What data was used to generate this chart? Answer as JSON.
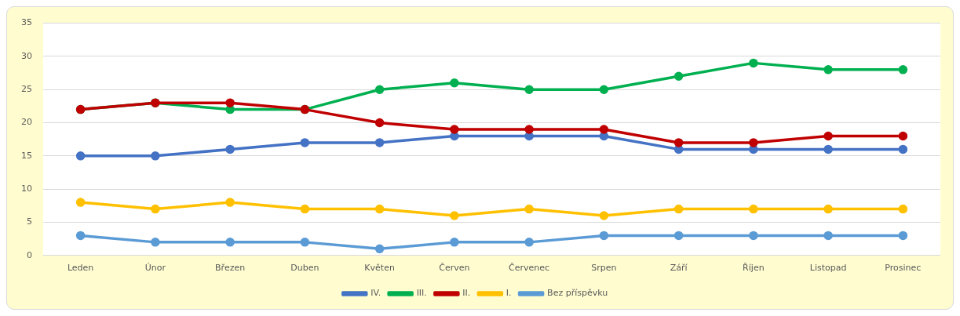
{
  "chart_data": {
    "type": "line",
    "categories": [
      "Leden",
      "Únor",
      "Březen",
      "Duben",
      "Květen",
      "Červen",
      "Červenec",
      "Srpen",
      "Září",
      "Říjen",
      "Listopad",
      "Prosinec"
    ],
    "series": [
      {
        "name": "IV.",
        "color": "#4472c4",
        "values": [
          15,
          15,
          16,
          17,
          17,
          18,
          18,
          18,
          16,
          16,
          16,
          16
        ]
      },
      {
        "name": "III.",
        "color": "#00b050",
        "values": [
          22,
          23,
          22,
          22,
          25,
          26,
          25,
          25,
          27,
          29,
          28,
          28
        ]
      },
      {
        "name": "II.",
        "color": "#c00000",
        "values": [
          22,
          23,
          23,
          22,
          20,
          19,
          19,
          19,
          17,
          17,
          18,
          18
        ]
      },
      {
        "name": "I.",
        "color": "#ffc000",
        "values": [
          8,
          7,
          8,
          7,
          7,
          6,
          7,
          6,
          7,
          7,
          7,
          7
        ]
      },
      {
        "name": "Bez příspěvku",
        "color": "#5b9bd5",
        "values": [
          3,
          2,
          2,
          2,
          1,
          2,
          2,
          3,
          3,
          3,
          3,
          3
        ]
      }
    ],
    "ylim": [
      0,
      35
    ],
    "yticks": [
      0,
      5,
      10,
      15,
      20,
      25,
      30,
      35
    ],
    "grid": "y",
    "legend": "bottom",
    "marker": "circle",
    "line_style": "solid"
  }
}
